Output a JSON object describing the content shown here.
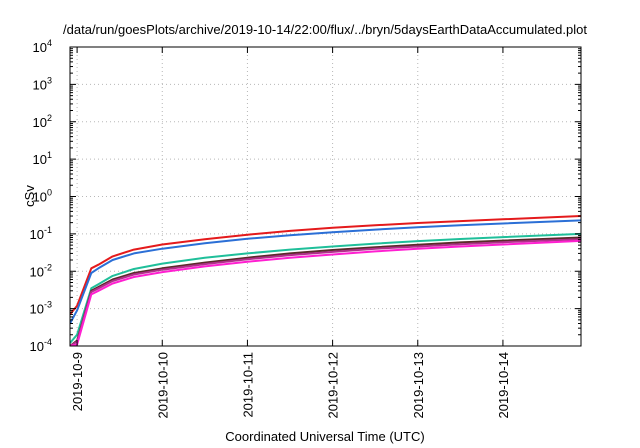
{
  "chart_data": {
    "type": "line",
    "title": "/data/run/goesPlots/archive/2019-10-14/22:00/flux/../bryn/5daysEarthDataAccumulated.plot",
    "xlabel": "Coordinated Universal Time (UTC)",
    "ylabel": "cSv",
    "y_scale": "log",
    "ylim": [
      0.0001,
      10000
    ],
    "y_ticks": [
      {
        "value": 0.0001,
        "base": "10",
        "exp": "-4"
      },
      {
        "value": 0.001,
        "base": "10",
        "exp": "-3"
      },
      {
        "value": 0.01,
        "base": "10",
        "exp": "-2"
      },
      {
        "value": 0.1,
        "base": "10",
        "exp": "-1"
      },
      {
        "value": 1,
        "base": "10",
        "exp": "0"
      },
      {
        "value": 10,
        "base": "10",
        "exp": "1"
      },
      {
        "value": 100,
        "base": "10",
        "exp": "2"
      },
      {
        "value": 1000,
        "base": "10",
        "exp": "3"
      },
      {
        "value": 10000,
        "base": "10",
        "exp": "4"
      }
    ],
    "xlim": [
      "2019-10-08T22:00",
      "2019-10-14T22:00"
    ],
    "x_ticks": [
      {
        "value": "2019-10-09T00:00",
        "label": "2019-10-9"
      },
      {
        "value": "2019-10-10T00:00",
        "label": "2019-10-10"
      },
      {
        "value": "2019-10-11T00:00",
        "label": "2019-10-11"
      },
      {
        "value": "2019-10-12T00:00",
        "label": "2019-10-12"
      },
      {
        "value": "2019-10-13T00:00",
        "label": "2019-10-13"
      },
      {
        "value": "2019-10-14T00:00",
        "label": "2019-10-14"
      }
    ],
    "grid": true,
    "series": [
      {
        "color": "#e41a1c",
        "points": [
          [
            "2019-10-08T22:00",
            0.0007
          ],
          [
            "2019-10-09T00:00",
            0.0012
          ],
          [
            "2019-10-09T04:00",
            0.012
          ],
          [
            "2019-10-09T06:00",
            0.015
          ],
          [
            "2019-10-09T10:00",
            0.025
          ],
          [
            "2019-10-09T16:00",
            0.038
          ],
          [
            "2019-10-10T00:00",
            0.052
          ],
          [
            "2019-10-10T12:00",
            0.072
          ],
          [
            "2019-10-11T00:00",
            0.095
          ],
          [
            "2019-10-11T12:00",
            0.12
          ],
          [
            "2019-10-12T00:00",
            0.145
          ],
          [
            "2019-10-12T12:00",
            0.17
          ],
          [
            "2019-10-13T00:00",
            0.195
          ],
          [
            "2019-10-13T12:00",
            0.22
          ],
          [
            "2019-10-14T00:00",
            0.245
          ],
          [
            "2019-10-14T22:00",
            0.3
          ]
        ]
      },
      {
        "color": "#2b6fd6",
        "points": [
          [
            "2019-10-08T22:00",
            0.0004
          ],
          [
            "2019-10-09T00:00",
            0.0009
          ],
          [
            "2019-10-09T04:00",
            0.009
          ],
          [
            "2019-10-09T06:00",
            0.012
          ],
          [
            "2019-10-09T10:00",
            0.02
          ],
          [
            "2019-10-09T16:00",
            0.03
          ],
          [
            "2019-10-10T00:00",
            0.04
          ],
          [
            "2019-10-10T12:00",
            0.056
          ],
          [
            "2019-10-11T00:00",
            0.074
          ],
          [
            "2019-10-11T12:00",
            0.092
          ],
          [
            "2019-10-12T00:00",
            0.11
          ],
          [
            "2019-10-12T12:00",
            0.13
          ],
          [
            "2019-10-13T00:00",
            0.15
          ],
          [
            "2019-10-13T12:00",
            0.17
          ],
          [
            "2019-10-14T00:00",
            0.19
          ],
          [
            "2019-10-14T22:00",
            0.23
          ]
        ]
      },
      {
        "color": "#1fbf9a",
        "points": [
          [
            "2019-10-08T22:00",
            0.00012
          ],
          [
            "2019-10-09T00:00",
            0.0002
          ],
          [
            "2019-10-09T04:00",
            0.0035
          ],
          [
            "2019-10-09T06:00",
            0.0045
          ],
          [
            "2019-10-09T10:00",
            0.0075
          ],
          [
            "2019-10-09T16:00",
            0.0115
          ],
          [
            "2019-10-10T00:00",
            0.016
          ],
          [
            "2019-10-10T12:00",
            0.023
          ],
          [
            "2019-10-11T00:00",
            0.03
          ],
          [
            "2019-10-11T12:00",
            0.038
          ],
          [
            "2019-10-12T00:00",
            0.046
          ],
          [
            "2019-10-12T12:00",
            0.055
          ],
          [
            "2019-10-13T00:00",
            0.064
          ],
          [
            "2019-10-13T12:00",
            0.073
          ],
          [
            "2019-10-14T00:00",
            0.082
          ],
          [
            "2019-10-14T22:00",
            0.1
          ]
        ]
      },
      {
        "color": "#5a2a2a",
        "points": [
          [
            "2019-10-08T22:00",
            0.0001
          ],
          [
            "2019-10-09T00:00",
            0.00014
          ],
          [
            "2019-10-09T04:00",
            0.003
          ],
          [
            "2019-10-09T06:00",
            0.0038
          ],
          [
            "2019-10-09T10:00",
            0.006
          ],
          [
            "2019-10-09T16:00",
            0.009
          ],
          [
            "2019-10-10T00:00",
            0.012
          ],
          [
            "2019-10-10T12:00",
            0.017
          ],
          [
            "2019-10-11T00:00",
            0.023
          ],
          [
            "2019-10-11T12:00",
            0.03
          ],
          [
            "2019-10-12T00:00",
            0.037
          ],
          [
            "2019-10-12T12:00",
            0.044
          ],
          [
            "2019-10-13T00:00",
            0.051
          ],
          [
            "2019-10-13T12:00",
            0.059
          ],
          [
            "2019-10-14T00:00",
            0.066
          ],
          [
            "2019-10-14T22:00",
            0.08
          ]
        ]
      },
      {
        "color": "#b0308a",
        "points": [
          [
            "2019-10-08T22:00",
            0.0001
          ],
          [
            "2019-10-09T00:00",
            0.00013
          ],
          [
            "2019-10-09T04:00",
            0.0028
          ],
          [
            "2019-10-09T06:00",
            0.0035
          ],
          [
            "2019-10-09T10:00",
            0.0055
          ],
          [
            "2019-10-09T16:00",
            0.0082
          ],
          [
            "2019-10-10T00:00",
            0.011
          ],
          [
            "2019-10-10T12:00",
            0.0155
          ],
          [
            "2019-10-11T00:00",
            0.021
          ],
          [
            "2019-10-11T12:00",
            0.027
          ],
          [
            "2019-10-12T00:00",
            0.033
          ],
          [
            "2019-10-12T12:00",
            0.04
          ],
          [
            "2019-10-13T00:00",
            0.046
          ],
          [
            "2019-10-13T12:00",
            0.053
          ],
          [
            "2019-10-14T00:00",
            0.06
          ],
          [
            "2019-10-14T22:00",
            0.072
          ]
        ]
      },
      {
        "color": "#ff1fd1",
        "points": [
          [
            "2019-10-08T22:00",
            0.0001
          ],
          [
            "2019-10-09T00:00",
            0.00011
          ],
          [
            "2019-10-09T04:00",
            0.0024
          ],
          [
            "2019-10-09T06:00",
            0.003
          ],
          [
            "2019-10-09T10:00",
            0.0047
          ],
          [
            "2019-10-09T16:00",
            0.007
          ],
          [
            "2019-10-10T00:00",
            0.0095
          ],
          [
            "2019-10-10T12:00",
            0.0135
          ],
          [
            "2019-10-11T00:00",
            0.018
          ],
          [
            "2019-10-11T12:00",
            0.023
          ],
          [
            "2019-10-12T00:00",
            0.028
          ],
          [
            "2019-10-12T12:00",
            0.034
          ],
          [
            "2019-10-13T00:00",
            0.04
          ],
          [
            "2019-10-13T12:00",
            0.046
          ],
          [
            "2019-10-14T00:00",
            0.052
          ],
          [
            "2019-10-14T22:00",
            0.065
          ]
        ]
      }
    ]
  }
}
